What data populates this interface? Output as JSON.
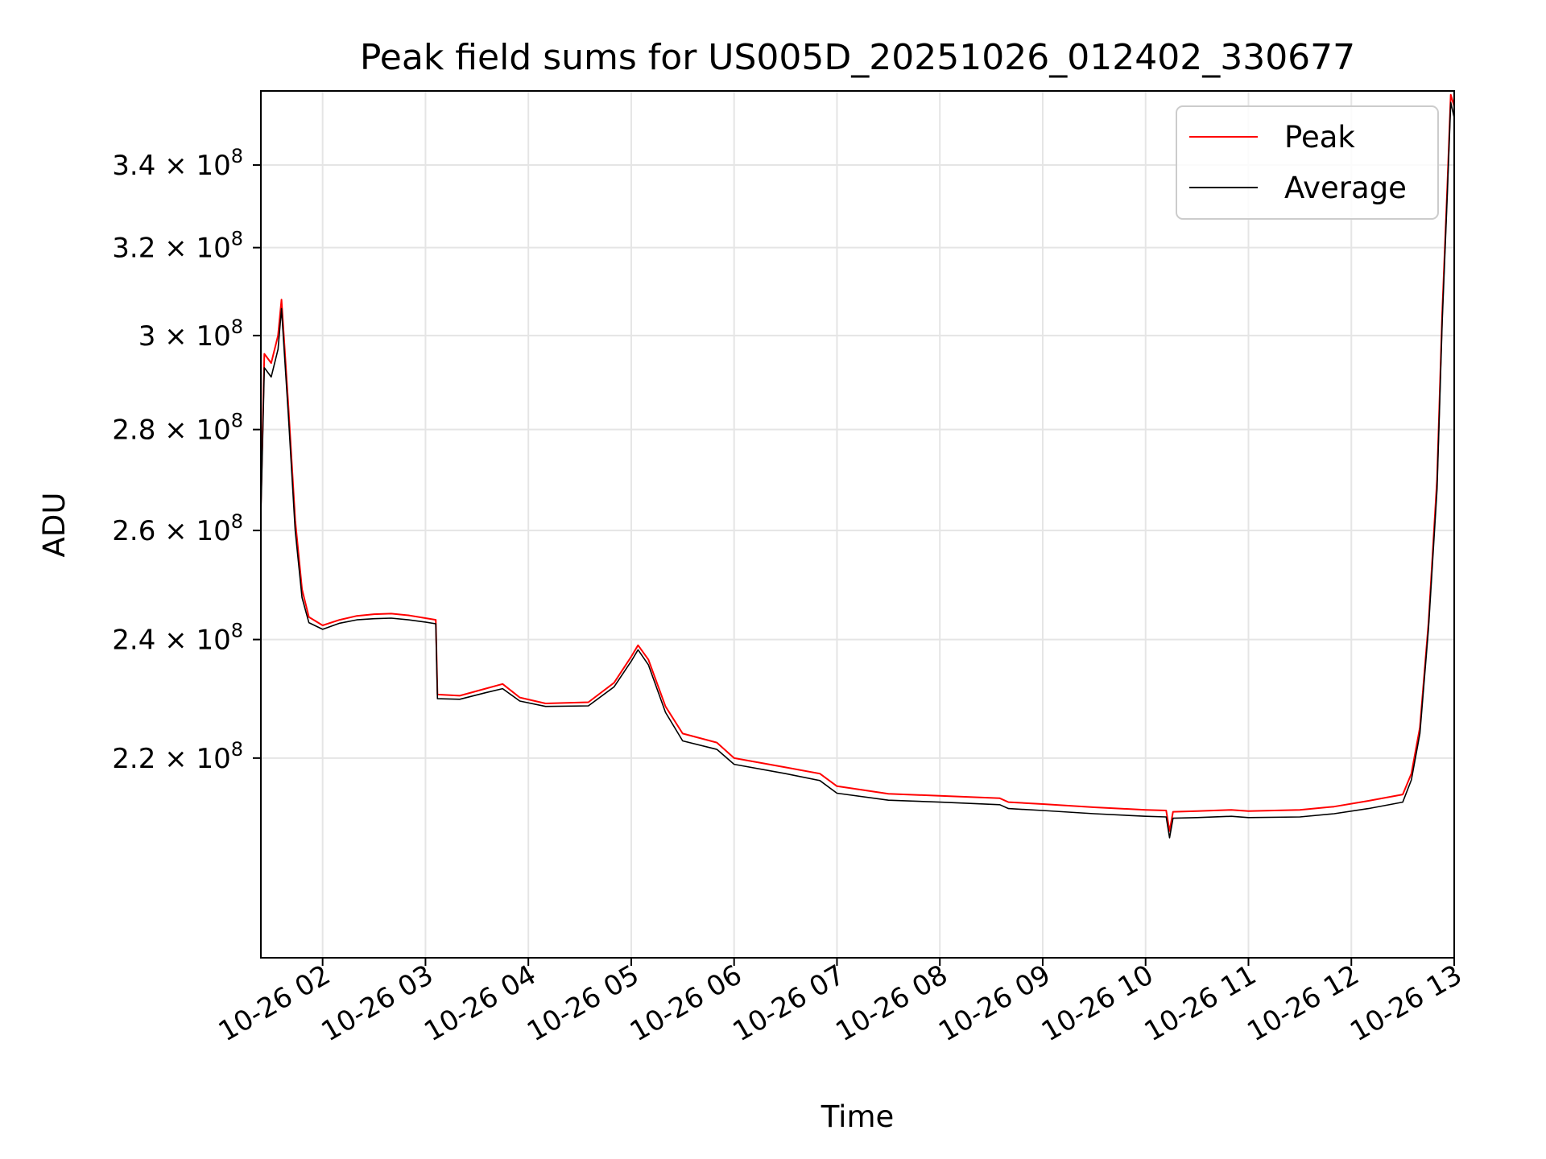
{
  "chart_data": {
    "type": "line",
    "title": "Peak field sums for US005D_20251026_012402_330677",
    "xlabel": "Time",
    "ylabel": "ADU",
    "yscale": "log",
    "grid": true,
    "legend_position": "top-right",
    "xlim": [
      "2025-10-26 01:24",
      "2025-10-26 13:00"
    ],
    "ylim": [
      190000000,
      359000000
    ],
    "x_ticks": [
      "10-26 02",
      "10-26 03",
      "10-26 04",
      "10-26 05",
      "10-26 06",
      "10-26 07",
      "10-26 08",
      "10-26 09",
      "10-26 10",
      "10-26 11",
      "10-26 12",
      "10-26 13"
    ],
    "x_tick_times": [
      "2025-10-26 02:00",
      "2025-10-26 03:00",
      "2025-10-26 04:00",
      "2025-10-26 05:00",
      "2025-10-26 06:00",
      "2025-10-26 07:00",
      "2025-10-26 08:00",
      "2025-10-26 09:00",
      "2025-10-26 10:00",
      "2025-10-26 11:00",
      "2025-10-26 12:00",
      "2025-10-26 13:00"
    ],
    "y_ticks": [
      {
        "value": 220000000,
        "mantissa": "2.2",
        "exponent": "8"
      },
      {
        "value": 240000000,
        "mantissa": "2.4",
        "exponent": "8"
      },
      {
        "value": 260000000,
        "mantissa": "2.6",
        "exponent": "8"
      },
      {
        "value": 280000000,
        "mantissa": "2.8",
        "exponent": "8"
      },
      {
        "value": 300000000,
        "mantissa": "3",
        "exponent": "8"
      },
      {
        "value": 320000000,
        "mantissa": "3.2",
        "exponent": "8"
      },
      {
        "value": 340000000,
        "mantissa": "3.4",
        "exponent": "8"
      }
    ],
    "tick_times_separator": "×",
    "tick_base": "10",
    "series": [
      {
        "name": "Peak",
        "color": "#ff0000",
        "points": [
          [
            "2025-10-26 01:24",
            265000000
          ],
          [
            "2025-10-26 01:26",
            296000000
          ],
          [
            "2025-10-26 01:30",
            294000000
          ],
          [
            "2025-10-26 01:34",
            300000000
          ],
          [
            "2025-10-26 01:36",
            308000000
          ],
          [
            "2025-10-26 01:40",
            285000000
          ],
          [
            "2025-10-26 01:44",
            262000000
          ],
          [
            "2025-10-26 01:48",
            249000000
          ],
          [
            "2025-10-26 01:52",
            244000000
          ],
          [
            "2025-10-26 02:00",
            242500000
          ],
          [
            "2025-10-26 02:10",
            243500000
          ],
          [
            "2025-10-26 02:20",
            244200000
          ],
          [
            "2025-10-26 02:30",
            244500000
          ],
          [
            "2025-10-26 02:40",
            244600000
          ],
          [
            "2025-10-26 02:50",
            244300000
          ],
          [
            "2025-10-26 03:00",
            243800000
          ],
          [
            "2025-10-26 03:06",
            243500000
          ],
          [
            "2025-10-26 03:07",
            230500000
          ],
          [
            "2025-10-26 03:20",
            230300000
          ],
          [
            "2025-10-26 03:35",
            231500000
          ],
          [
            "2025-10-26 03:45",
            232300000
          ],
          [
            "2025-10-26 03:55",
            230000000
          ],
          [
            "2025-10-26 04:10",
            229000000
          ],
          [
            "2025-10-26 04:35",
            229200000
          ],
          [
            "2025-10-26 04:50",
            232500000
          ],
          [
            "2025-10-26 05:00",
            237000000
          ],
          [
            "2025-10-26 05:04",
            239000000
          ],
          [
            "2025-10-26 05:10",
            236500000
          ],
          [
            "2025-10-26 05:20",
            228500000
          ],
          [
            "2025-10-26 05:30",
            224000000
          ],
          [
            "2025-10-26 05:50",
            222500000
          ],
          [
            "2025-10-26 06:00",
            220000000
          ],
          [
            "2025-10-26 06:30",
            218500000
          ],
          [
            "2025-10-26 06:50",
            217500000
          ],
          [
            "2025-10-26 07:00",
            215500000
          ],
          [
            "2025-10-26 07:30",
            214300000
          ],
          [
            "2025-10-26 08:00",
            214000000
          ],
          [
            "2025-10-26 08:35",
            213600000
          ],
          [
            "2025-10-26 08:40",
            213000000
          ],
          [
            "2025-10-26 09:00",
            212700000
          ],
          [
            "2025-10-26 09:30",
            212200000
          ],
          [
            "2025-10-26 10:00",
            211800000
          ],
          [
            "2025-10-26 10:12",
            211700000
          ],
          [
            "2025-10-26 10:14",
            208500000
          ],
          [
            "2025-10-26 10:16",
            211500000
          ],
          [
            "2025-10-26 10:30",
            211600000
          ],
          [
            "2025-10-26 10:50",
            211800000
          ],
          [
            "2025-10-26 11:00",
            211600000
          ],
          [
            "2025-10-26 11:30",
            211800000
          ],
          [
            "2025-10-26 11:50",
            212300000
          ],
          [
            "2025-10-26 12:10",
            213200000
          ],
          [
            "2025-10-26 12:30",
            214200000
          ],
          [
            "2025-10-26 12:35",
            217500000
          ],
          [
            "2025-10-26 12:40",
            225000000
          ],
          [
            "2025-10-26 12:45",
            243000000
          ],
          [
            "2025-10-26 12:50",
            270000000
          ],
          [
            "2025-10-26 12:53",
            305000000
          ],
          [
            "2025-10-26 12:56",
            335000000
          ],
          [
            "2025-10-26 12:58",
            358000000
          ],
          [
            "2025-10-26 13:00",
            355000000
          ]
        ]
      },
      {
        "name": "Average",
        "color": "#000000",
        "points": [
          [
            "2025-10-26 01:24",
            263000000
          ],
          [
            "2025-10-26 01:26",
            293000000
          ],
          [
            "2025-10-26 01:30",
            291000000
          ],
          [
            "2025-10-26 01:34",
            297000000
          ],
          [
            "2025-10-26 01:36",
            306000000
          ],
          [
            "2025-10-26 01:40",
            283000000
          ],
          [
            "2025-10-26 01:44",
            260000000
          ],
          [
            "2025-10-26 01:48",
            247500000
          ],
          [
            "2025-10-26 01:52",
            243000000
          ],
          [
            "2025-10-26 02:00",
            241800000
          ],
          [
            "2025-10-26 02:10",
            242900000
          ],
          [
            "2025-10-26 02:20",
            243500000
          ],
          [
            "2025-10-26 02:30",
            243700000
          ],
          [
            "2025-10-26 02:40",
            243800000
          ],
          [
            "2025-10-26 02:50",
            243500000
          ],
          [
            "2025-10-26 03:00",
            243100000
          ],
          [
            "2025-10-26 03:06",
            242800000
          ],
          [
            "2025-10-26 03:07",
            229800000
          ],
          [
            "2025-10-26 03:20",
            229700000
          ],
          [
            "2025-10-26 03:35",
            230800000
          ],
          [
            "2025-10-26 03:45",
            231500000
          ],
          [
            "2025-10-26 03:55",
            229400000
          ],
          [
            "2025-10-26 04:10",
            228500000
          ],
          [
            "2025-10-26 04:35",
            228600000
          ],
          [
            "2025-10-26 04:50",
            231800000
          ],
          [
            "2025-10-26 05:00",
            236200000
          ],
          [
            "2025-10-26 05:04",
            238200000
          ],
          [
            "2025-10-26 05:10",
            235600000
          ],
          [
            "2025-10-26 05:20",
            227500000
          ],
          [
            "2025-10-26 05:30",
            222800000
          ],
          [
            "2025-10-26 05:50",
            221400000
          ],
          [
            "2025-10-26 06:00",
            219000000
          ],
          [
            "2025-10-26 06:30",
            217500000
          ],
          [
            "2025-10-26 06:50",
            216400000
          ],
          [
            "2025-10-26 07:00",
            214400000
          ],
          [
            "2025-10-26 07:30",
            213300000
          ],
          [
            "2025-10-26 08:00",
            213000000
          ],
          [
            "2025-10-26 08:35",
            212600000
          ],
          [
            "2025-10-26 08:40",
            212000000
          ],
          [
            "2025-10-26 09:00",
            211700000
          ],
          [
            "2025-10-26 09:30",
            211200000
          ],
          [
            "2025-10-26 10:00",
            210800000
          ],
          [
            "2025-10-26 10:12",
            210700000
          ],
          [
            "2025-10-26 10:14",
            207500000
          ],
          [
            "2025-10-26 10:16",
            210500000
          ],
          [
            "2025-10-26 10:30",
            210600000
          ],
          [
            "2025-10-26 10:50",
            210800000
          ],
          [
            "2025-10-26 11:00",
            210600000
          ],
          [
            "2025-10-26 11:30",
            210700000
          ],
          [
            "2025-10-26 11:50",
            211200000
          ],
          [
            "2025-10-26 12:10",
            212000000
          ],
          [
            "2025-10-26 12:30",
            213000000
          ],
          [
            "2025-10-26 12:35",
            216500000
          ],
          [
            "2025-10-26 12:40",
            224000000
          ],
          [
            "2025-10-26 12:45",
            242000000
          ],
          [
            "2025-10-26 12:50",
            268000000
          ],
          [
            "2025-10-26 12:53",
            303000000
          ],
          [
            "2025-10-26 12:56",
            333000000
          ],
          [
            "2025-10-26 12:58",
            356000000
          ],
          [
            "2025-10-26 13:00",
            352000000
          ]
        ]
      }
    ]
  }
}
